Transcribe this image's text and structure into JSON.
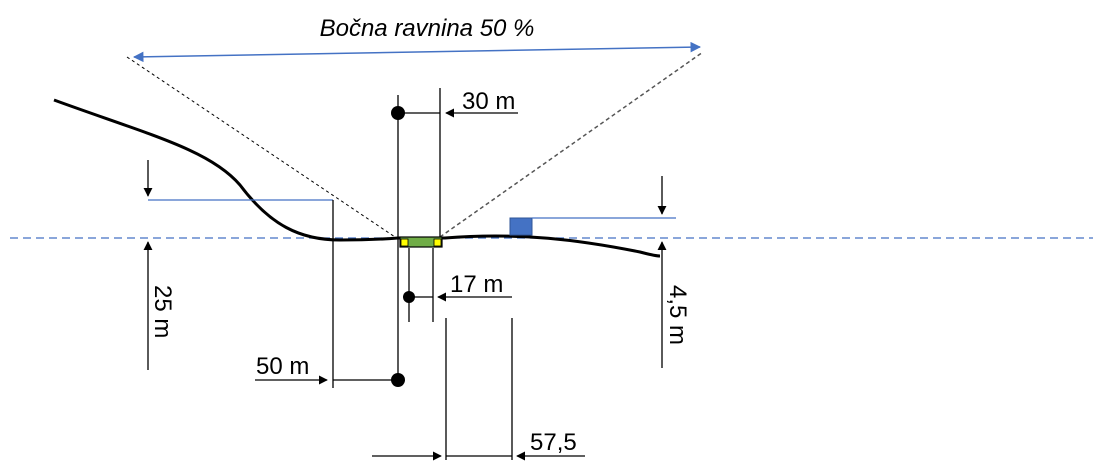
{
  "title": "Bočna ravnina 50 %",
  "labels": {
    "top_width": "30 m",
    "strip_width": "17 m",
    "left_offset": "50 m",
    "bottom_offset": "57,5",
    "left_height": "25 m",
    "right_height": "4,5 m"
  },
  "colors": {
    "baseline": "#4472c4",
    "plane_arrow": "#4472c4",
    "runway_fill": "#70ad47",
    "runway_edge": "#ffff00",
    "obstacle": "#4472c4",
    "terrain": "#000000"
  }
}
